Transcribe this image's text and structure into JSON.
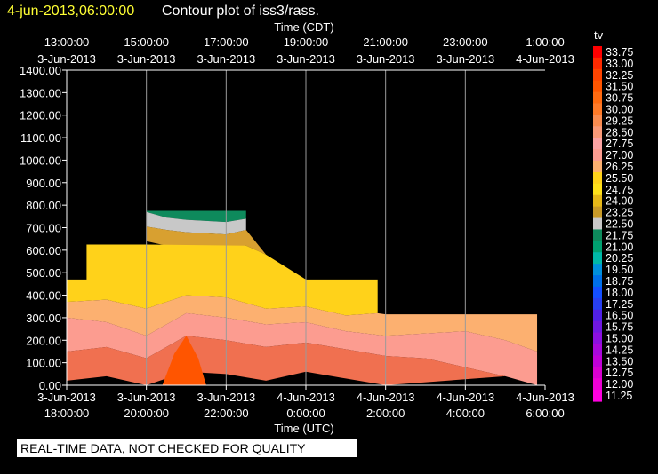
{
  "header": {
    "date": "4-jun-2013,06:00:00",
    "title": "Contour plot of iss3/rass."
  },
  "footer_note": "REAL-TIME DATA, NOT CHECKED FOR QUALITY",
  "chart_data": {
    "type": "heatmap",
    "variable": "tv",
    "top_axis": {
      "label": "Time (CDT)",
      "ticks": [
        {
          "time": "13:00:00",
          "date": "3-Jun-2013"
        },
        {
          "time": "15:00:00",
          "date": "3-Jun-2013"
        },
        {
          "time": "17:00:00",
          "date": "3-Jun-2013"
        },
        {
          "time": "19:00:00",
          "date": "3-Jun-2013"
        },
        {
          "time": "21:00:00",
          "date": "3-Jun-2013"
        },
        {
          "time": "23:00:00",
          "date": "3-Jun-2013"
        },
        {
          "time": "1:00:00",
          "date": "4-Jun-2013"
        }
      ]
    },
    "bottom_axis": {
      "label": "Time (UTC)",
      "ticks": [
        {
          "date": "3-Jun-2013",
          "time": "18:00:00"
        },
        {
          "date": "3-Jun-2013",
          "time": "20:00:00"
        },
        {
          "date": "3-Jun-2013",
          "time": "22:00:00"
        },
        {
          "date": "4-Jun-2013",
          "time": "0:00:00"
        },
        {
          "date": "4-Jun-2013",
          "time": "2:00:00"
        },
        {
          "date": "4-Jun-2013",
          "time": "4:00:00"
        },
        {
          "date": "4-Jun-2013",
          "time": "6:00:00"
        }
      ]
    },
    "y_axis": {
      "ticks": [
        "0.00",
        "100.00",
        "200.00",
        "300.00",
        "400.00",
        "500.00",
        "600.00",
        "700.00",
        "800.00",
        "900.00",
        "1000.00",
        "1100.00",
        "1200.00",
        "1300.00",
        "1400.00"
      ],
      "ylim": [
        0,
        1400
      ]
    },
    "x_range_hours_utc": [
      18,
      30
    ],
    "grid": true,
    "legend": {
      "position": "right",
      "title": "tv",
      "levels": [
        "33.75",
        "33.00",
        "32.25",
        "31.50",
        "30.75",
        "30.00",
        "29.25",
        "28.50",
        "27.75",
        "27.00",
        "26.25",
        "25.50",
        "24.75",
        "24.00",
        "23.25",
        "22.50",
        "21.75",
        "21.00",
        "20.25",
        "19.50",
        "18.75",
        "18.00",
        "17.25",
        "16.50",
        "15.75",
        "15.00",
        "14.25",
        "13.50",
        "12.75",
        "12.00",
        "11.25"
      ],
      "colors": [
        "#ff0000",
        "#ff2a00",
        "#ff4400",
        "#ff5500",
        "#ff6a10",
        "#ff7a28",
        "#fa8c50",
        "#fa9a78",
        "#fca3a3",
        "#fc9c90",
        "#fcb070",
        "#ffd21a",
        "#ffe11a",
        "#e6b818",
        "#c89a28",
        "#c8c8c8",
        "#0e8a5c",
        "#00a070",
        "#00b8a8",
        "#0090dc",
        "#0070e8",
        "#1450ff",
        "#2840f0",
        "#5020e6",
        "#7018e0",
        "#8c10e0",
        "#a808dc",
        "#c000d8",
        "#d800d0",
        "#ec00d4",
        "#ff00e0"
      ]
    },
    "isotherm_bands": [
      {
        "color": "#0e8a5c",
        "top": [
          [
            20,
            775
          ],
          [
            21,
            775
          ],
          [
            22,
            775
          ],
          [
            22.5,
            775
          ]
        ],
        "bottom": [
          [
            20,
            770
          ],
          [
            20.5,
            745
          ],
          [
            21,
            735
          ],
          [
            22,
            725
          ],
          [
            22.5,
            740
          ]
        ]
      },
      {
        "color": "#c8c8c8",
        "top": [
          [
            20,
            770
          ],
          [
            20.5,
            745
          ],
          [
            21,
            735
          ],
          [
            22,
            725
          ],
          [
            22.5,
            740
          ]
        ],
        "bottom": [
          [
            20,
            705
          ],
          [
            20.5,
            690
          ],
          [
            21,
            680
          ],
          [
            22,
            670
          ],
          [
            22.5,
            690
          ]
        ]
      },
      {
        "color": "#d8a030",
        "top": [
          [
            20,
            705
          ],
          [
            20.5,
            690
          ],
          [
            21,
            680
          ],
          [
            22,
            670
          ],
          [
            22.5,
            690
          ]
        ],
        "bottom": [
          [
            20,
            640
          ],
          [
            20.5,
            620
          ],
          [
            21,
            610
          ],
          [
            22,
            600
          ],
          [
            22.5,
            620
          ],
          [
            23,
            580
          ]
        ]
      },
      {
        "color": "#ffd21a",
        "top": [
          [
            18,
            470
          ],
          [
            18.5,
            470
          ],
          [
            18.5,
            625
          ],
          [
            20,
            625
          ],
          [
            22.5,
            620
          ],
          [
            23,
            580
          ],
          [
            24,
            470
          ],
          [
            25,
            470
          ],
          [
            25.8,
            470
          ]
        ],
        "bottom": [
          [
            18,
            370
          ],
          [
            19,
            380
          ],
          [
            20,
            340
          ],
          [
            21,
            400
          ],
          [
            22,
            390
          ],
          [
            23,
            340
          ],
          [
            24,
            350
          ],
          [
            25,
            310
          ],
          [
            25.8,
            320
          ]
        ]
      },
      {
        "color": "#fcb070",
        "top": [
          [
            18,
            370
          ],
          [
            19,
            380
          ],
          [
            20,
            340
          ],
          [
            21,
            400
          ],
          [
            22,
            390
          ],
          [
            23,
            340
          ],
          [
            24,
            350
          ],
          [
            25,
            310
          ],
          [
            25.8,
            320
          ],
          [
            26,
            315
          ],
          [
            29.8,
            315
          ]
        ],
        "bottom": [
          [
            18,
            300
          ],
          [
            19,
            280
          ],
          [
            20,
            220
          ],
          [
            21,
            320
          ],
          [
            22,
            300
          ],
          [
            23,
            270
          ],
          [
            24,
            280
          ],
          [
            25,
            240
          ],
          [
            26,
            220
          ],
          [
            27,
            230
          ],
          [
            28,
            240
          ],
          [
            29,
            200
          ],
          [
            29.8,
            150
          ]
        ]
      },
      {
        "color": "#fc9c90",
        "top": [
          [
            18,
            300
          ],
          [
            19,
            280
          ],
          [
            20,
            220
          ],
          [
            21,
            320
          ],
          [
            22,
            300
          ],
          [
            23,
            270
          ],
          [
            24,
            280
          ],
          [
            25,
            240
          ],
          [
            26,
            220
          ],
          [
            27,
            230
          ],
          [
            28,
            240
          ],
          [
            29,
            200
          ],
          [
            29.8,
            150
          ]
        ],
        "bottom": [
          [
            18,
            150
          ],
          [
            19,
            170
          ],
          [
            20,
            120
          ],
          [
            21,
            220
          ],
          [
            22,
            200
          ],
          [
            23,
            170
          ],
          [
            24,
            190
          ],
          [
            25,
            160
          ],
          [
            26,
            130
          ],
          [
            27,
            120
          ],
          [
            28,
            80
          ],
          [
            29,
            40
          ],
          [
            29.8,
            0
          ]
        ]
      },
      {
        "color": "#f07050",
        "top": [
          [
            18,
            150
          ],
          [
            19,
            170
          ],
          [
            20,
            120
          ],
          [
            21,
            220
          ],
          [
            22,
            200
          ],
          [
            23,
            170
          ],
          [
            24,
            190
          ],
          [
            25,
            160
          ],
          [
            26,
            130
          ],
          [
            27,
            120
          ],
          [
            28,
            80
          ],
          [
            29,
            40
          ]
        ],
        "bottom": [
          [
            18,
            20
          ],
          [
            19,
            40
          ],
          [
            20,
            0
          ],
          [
            21,
            60
          ],
          [
            22,
            50
          ],
          [
            23,
            20
          ],
          [
            24,
            60
          ],
          [
            25,
            30
          ],
          [
            26,
            0
          ]
        ]
      },
      {
        "color": "#ff5500",
        "top": [
          [
            20.4,
            0
          ],
          [
            20.7,
            140
          ],
          [
            21,
            220
          ],
          [
            21.3,
            120
          ],
          [
            21.5,
            0
          ]
        ],
        "bottom": [
          [
            20.4,
            0
          ],
          [
            21.5,
            0
          ]
        ]
      }
    ]
  }
}
